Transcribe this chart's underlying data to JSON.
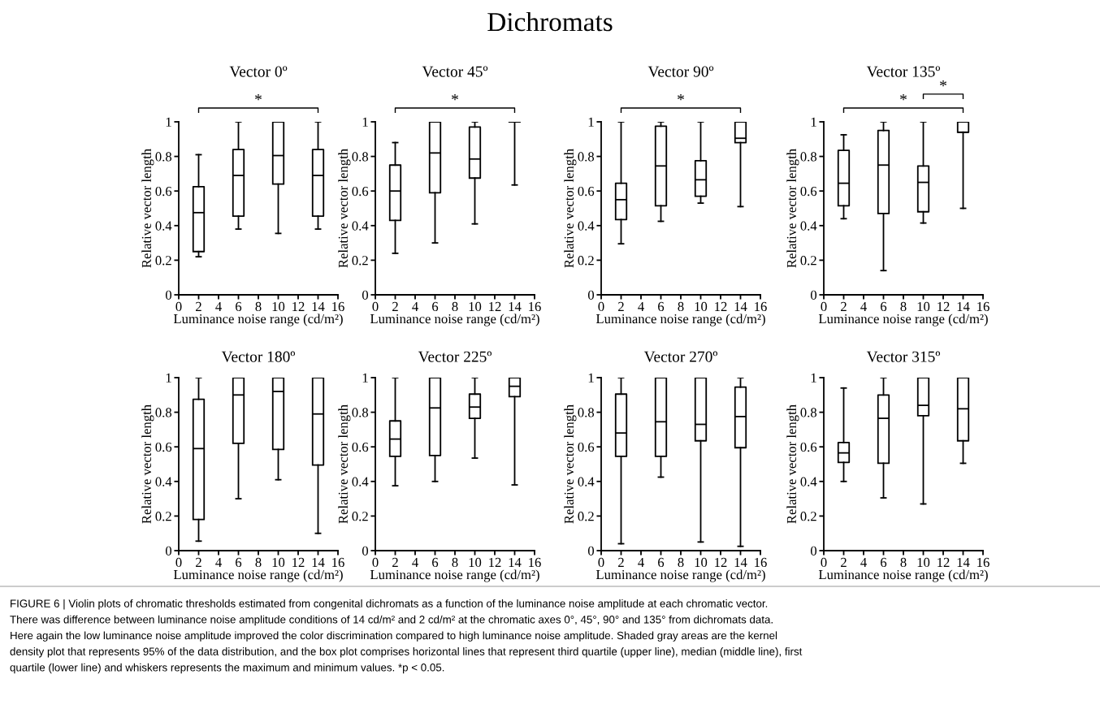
{
  "chart_data": [
    {
      "type": "box",
      "title": "Vector 0º",
      "xlabel": "Luminance noise range (cd/m²)",
      "ylabel": "Relative vector length",
      "x": [
        2,
        6,
        10,
        14
      ],
      "xlim": [
        0,
        16
      ],
      "xticks": [
        0,
        2,
        4,
        6,
        8,
        10,
        12,
        14,
        16
      ],
      "ylim": [
        0,
        1
      ],
      "yticks": [
        0,
        0.2,
        0.4,
        0.6,
        0.8,
        1
      ],
      "annotations": [
        "*"
      ],
      "boxes": [
        {
          "low": 0.22,
          "q1": 0.25,
          "median": 0.475,
          "q3": 0.625,
          "high": 0.81
        },
        {
          "low": 0.38,
          "q1": 0.455,
          "median": 0.69,
          "q3": 0.84,
          "high": 1.0
        },
        {
          "low": 0.355,
          "q1": 0.64,
          "median": 0.805,
          "q3": 1.0,
          "high": 1.0
        },
        {
          "low": 0.38,
          "q1": 0.455,
          "median": 0.69,
          "q3": 0.84,
          "high": 1.0
        }
      ]
    },
    {
      "type": "box",
      "title": "Vector 45º",
      "xlabel": "Luminance noise range (cd/m²)",
      "ylabel": "Relative vector length",
      "x": [
        2,
        6,
        10,
        14
      ],
      "xlim": [
        0,
        16
      ],
      "xticks": [
        0,
        2,
        4,
        6,
        8,
        10,
        12,
        14,
        16
      ],
      "ylim": [
        0,
        1
      ],
      "yticks": [
        0,
        0.2,
        0.4,
        0.6,
        0.8,
        1
      ],
      "annotations": [
        "*"
      ],
      "boxes": [
        {
          "low": 0.24,
          "q1": 0.43,
          "median": 0.6,
          "q3": 0.75,
          "high": 0.88
        },
        {
          "low": 0.3,
          "q1": 0.59,
          "median": 0.82,
          "q3": 1.0,
          "high": 1.0
        },
        {
          "low": 0.41,
          "q1": 0.675,
          "median": 0.785,
          "q3": 0.97,
          "high": 1.0
        },
        {
          "low": 0.635,
          "q1": 1.0,
          "median": 1.0,
          "q3": 1.0,
          "high": 1.0
        }
      ]
    },
    {
      "type": "box",
      "title": "Vector 90º",
      "xlabel": "Luminance noise range (cd/m²)",
      "ylabel": "Relative vector length",
      "x": [
        2,
        6,
        10,
        14
      ],
      "xlim": [
        0,
        16
      ],
      "xticks": [
        0,
        2,
        4,
        6,
        8,
        10,
        12,
        14,
        16
      ],
      "ylim": [
        0,
        1
      ],
      "yticks": [
        0,
        0.2,
        0.4,
        0.6,
        0.8,
        1
      ],
      "annotations": [
        "*"
      ],
      "boxes": [
        {
          "low": 0.295,
          "q1": 0.435,
          "median": 0.55,
          "q3": 0.645,
          "high": 1.0
        },
        {
          "low": 0.425,
          "q1": 0.515,
          "median": 0.745,
          "q3": 0.975,
          "high": 1.0
        },
        {
          "low": 0.53,
          "q1": 0.57,
          "median": 0.665,
          "q3": 0.775,
          "high": 1.0
        },
        {
          "low": 0.51,
          "q1": 0.88,
          "median": 0.905,
          "q3": 1.0,
          "high": 1.0
        }
      ]
    },
    {
      "type": "box",
      "title": "Vector 135º",
      "xlabel": "Luminance noise range (cd/m²)",
      "ylabel": "Relative vector length",
      "x": [
        2,
        6,
        10,
        14
      ],
      "xlim": [
        0,
        16
      ],
      "xticks": [
        0,
        2,
        4,
        6,
        8,
        10,
        12,
        14,
        16
      ],
      "ylim": [
        0,
        1
      ],
      "yticks": [
        0,
        0.2,
        0.4,
        0.6,
        0.8,
        1
      ],
      "annotations": [
        "*",
        "*"
      ],
      "boxes": [
        {
          "low": 0.44,
          "q1": 0.515,
          "median": 0.645,
          "q3": 0.835,
          "high": 0.925
        },
        {
          "low": 0.14,
          "q1": 0.47,
          "median": 0.75,
          "q3": 0.95,
          "high": 1.0
        },
        {
          "low": 0.415,
          "q1": 0.48,
          "median": 0.65,
          "q3": 0.745,
          "high": 1.0
        },
        {
          "low": 0.5,
          "q1": 0.94,
          "median": 0.94,
          "q3": 1.0,
          "high": 1.0
        }
      ]
    },
    {
      "type": "box",
      "title": "Vector 180º",
      "xlabel": "Luminance noise range (cd/m²)",
      "ylabel": "Relative vector length",
      "x": [
        2,
        6,
        10,
        14
      ],
      "xlim": [
        0,
        16
      ],
      "xticks": [
        0,
        2,
        4,
        6,
        8,
        10,
        12,
        14,
        16
      ],
      "ylim": [
        0,
        1
      ],
      "yticks": [
        0,
        0.2,
        0.4,
        0.6,
        0.8,
        1
      ],
      "boxes": [
        {
          "low": 0.055,
          "q1": 0.18,
          "median": 0.59,
          "q3": 0.875,
          "high": 1.0
        },
        {
          "low": 0.3,
          "q1": 0.62,
          "median": 0.9,
          "q3": 1.0,
          "high": 1.0
        },
        {
          "low": 0.41,
          "q1": 0.585,
          "median": 0.92,
          "q3": 1.0,
          "high": 1.0
        },
        {
          "low": 0.1,
          "q1": 0.495,
          "median": 0.79,
          "q3": 1.0,
          "high": 1.0
        }
      ]
    },
    {
      "type": "box",
      "title": "Vector 225º",
      "xlabel": "Luminance noise range (cd/m²)",
      "ylabel": "Relative vector length",
      "x": [
        2,
        6,
        10,
        14
      ],
      "xlim": [
        0,
        16
      ],
      "xticks": [
        0,
        2,
        4,
        6,
        8,
        10,
        12,
        14,
        16
      ],
      "ylim": [
        0,
        1
      ],
      "yticks": [
        0,
        0.2,
        0.4,
        0.6,
        0.8,
        1
      ],
      "boxes": [
        {
          "low": 0.375,
          "q1": 0.545,
          "median": 0.645,
          "q3": 0.75,
          "high": 1.0
        },
        {
          "low": 0.4,
          "q1": 0.55,
          "median": 0.825,
          "q3": 1.0,
          "high": 1.0
        },
        {
          "low": 0.535,
          "q1": 0.765,
          "median": 0.83,
          "q3": 0.905,
          "high": 1.0
        },
        {
          "low": 0.38,
          "q1": 0.89,
          "median": 0.95,
          "q3": 1.0,
          "high": 1.0
        }
      ]
    },
    {
      "type": "box",
      "title": "Vector 270º",
      "xlabel": "Luminance noise range (cd/m²)",
      "ylabel": "Relative vector length",
      "x": [
        2,
        6,
        10,
        14
      ],
      "xlim": [
        0,
        16
      ],
      "xticks": [
        0,
        2,
        4,
        6,
        8,
        10,
        12,
        14,
        16
      ],
      "ylim": [
        0,
        1
      ],
      "yticks": [
        0,
        0.2,
        0.4,
        0.6,
        0.8,
        1
      ],
      "boxes": [
        {
          "low": 0.04,
          "q1": 0.545,
          "median": 0.68,
          "q3": 0.905,
          "high": 1.0
        },
        {
          "low": 0.425,
          "q1": 0.545,
          "median": 0.745,
          "q3": 1.0,
          "high": 1.0
        },
        {
          "low": 0.05,
          "q1": 0.635,
          "median": 0.73,
          "q3": 1.0,
          "high": 1.0
        },
        {
          "low": 0.025,
          "q1": 0.595,
          "median": 0.775,
          "q3": 0.945,
          "high": 1.0
        }
      ]
    },
    {
      "type": "box",
      "title": "Vector 315º",
      "xlabel": "Luminance noise range (cd/m²)",
      "ylabel": "Relative vector length",
      "x": [
        2,
        6,
        10,
        14
      ],
      "xlim": [
        0,
        16
      ],
      "xticks": [
        0,
        2,
        4,
        6,
        8,
        10,
        12,
        14,
        16
      ],
      "ylim": [
        0,
        1
      ],
      "yticks": [
        0,
        0.2,
        0.4,
        0.6,
        0.8,
        1
      ],
      "boxes": [
        {
          "low": 0.4,
          "q1": 0.51,
          "median": 0.565,
          "q3": 0.625,
          "high": 0.94
        },
        {
          "low": 0.305,
          "q1": 0.505,
          "median": 0.765,
          "q3": 0.9,
          "high": 1.0
        },
        {
          "low": 0.27,
          "q1": 0.78,
          "median": 0.84,
          "q3": 1.0,
          "high": 1.0
        },
        {
          "low": 0.505,
          "q1": 0.635,
          "median": 0.82,
          "q3": 1.0,
          "high": 1.0
        }
      ]
    },
    {
      "type": "other",
      "title": "Dichromats",
      "annotations": [
        "FIGURE 6 | Violin plots of chromatic thresholds estimated from congenital dichromats as a function of the luminance noise amplitude at each chromatic vector.\nThere was difference between luminance noise amplitude conditions of 14 cd/m² and 2 cd/m² at the chromatic axes 0°, 45°, 90° and 135° from dichromats data.\nHere again the low luminance noise amplitude improved the color discrimination compared to high luminance noise amplitude. Shaded gray areas are the kernel\ndensity plot that represents 95% of the data distribution, and the box plot comprises horizontal lines that represent third quartile (upper line), median (middle line), first\nquartile (lower line) and whiskers represents the maximum and minimum values. *p < 0.05."
      ]
    }
  ]
}
